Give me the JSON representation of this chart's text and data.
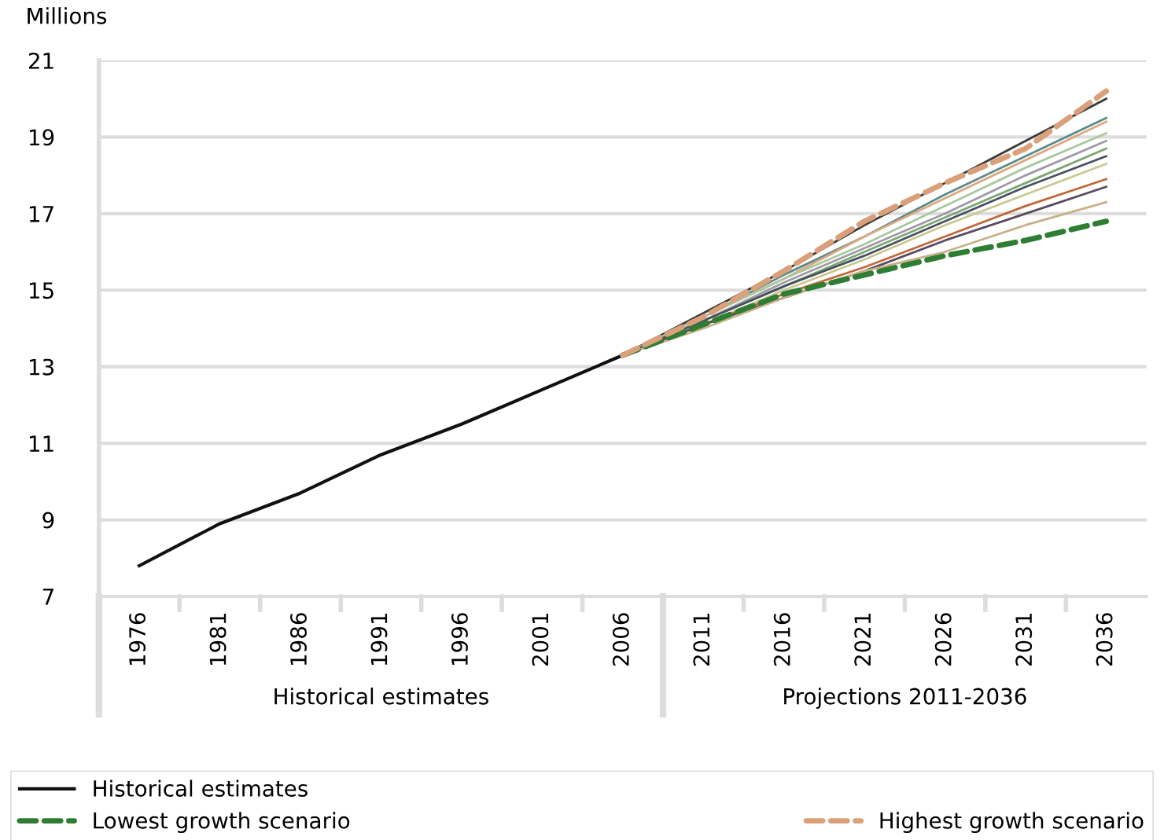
{
  "chart_data": {
    "type": "line",
    "ylabel": "Millions",
    "categories": [
      "1976",
      "1981",
      "1986",
      "1991",
      "1996",
      "2001",
      "2006",
      "2011",
      "2016",
      "2021",
      "2026",
      "2031",
      "2036"
    ],
    "series": [
      {
        "name": "Historical estimates",
        "color": "#111111",
        "line_style": "solid",
        "values": [
          7.8,
          8.9,
          9.7,
          10.7,
          11.5,
          12.4,
          13.3,
          null,
          null,
          null,
          null,
          null,
          null
        ]
      },
      {
        "color": "#3a3a3a",
        "line_style": "solid",
        "values": [
          null,
          null,
          null,
          null,
          null,
          null,
          13.3,
          14.4,
          15.5,
          16.7,
          17.8,
          18.9,
          20.0
        ]
      },
      {
        "color": "#5a8a8c",
        "line_style": "solid",
        "values": [
          null,
          null,
          null,
          null,
          null,
          null,
          13.3,
          14.3,
          15.4,
          16.4,
          17.5,
          18.5,
          19.5
        ]
      },
      {
        "color": "#dcaa80",
        "line_style": "solid",
        "values": [
          null,
          null,
          null,
          null,
          null,
          null,
          13.3,
          14.3,
          15.3,
          16.4,
          17.4,
          18.4,
          19.4
        ]
      },
      {
        "color": "#a8c8a0",
        "line_style": "solid",
        "values": [
          null,
          null,
          null,
          null,
          null,
          null,
          13.3,
          14.3,
          15.3,
          16.2,
          17.2,
          18.2,
          19.1
        ]
      },
      {
        "color": "#a09aa8",
        "line_style": "solid",
        "values": [
          null,
          null,
          null,
          null,
          null,
          null,
          13.3,
          14.2,
          15.2,
          16.1,
          17.0,
          18.0,
          18.9
        ]
      },
      {
        "color": "#7aa870",
        "line_style": "solid",
        "values": [
          null,
          null,
          null,
          null,
          null,
          null,
          13.3,
          14.2,
          15.1,
          16.0,
          16.9,
          17.8,
          18.7
        ]
      },
      {
        "color": "#4a5060",
        "line_style": "solid",
        "values": [
          null,
          null,
          null,
          null,
          null,
          null,
          13.3,
          14.2,
          15.1,
          15.9,
          16.8,
          17.7,
          18.5
        ]
      },
      {
        "color": "#c8c890",
        "line_style": "solid",
        "values": [
          null,
          null,
          null,
          null,
          null,
          null,
          13.3,
          14.1,
          15.0,
          15.8,
          16.7,
          17.5,
          18.3
        ]
      },
      {
        "color": "#c0683a",
        "line_style": "solid",
        "values": [
          null,
          null,
          null,
          null,
          null,
          null,
          13.3,
          14.1,
          14.9,
          15.6,
          16.4,
          17.2,
          17.9
        ]
      },
      {
        "color": "#5a4a60",
        "line_style": "solid",
        "values": [
          null,
          null,
          null,
          null,
          null,
          null,
          13.3,
          14.1,
          14.8,
          15.5,
          16.3,
          17.0,
          17.7
        ]
      },
      {
        "color": "#c8b088",
        "line_style": "solid",
        "values": [
          null,
          null,
          null,
          null,
          null,
          null,
          13.3,
          14.0,
          14.8,
          15.5,
          16.0,
          16.7,
          17.3
        ]
      },
      {
        "name": "Lowest growth scenario",
        "color": "#2e7d32",
        "line_style": "dashed",
        "values": [
          null,
          null,
          null,
          null,
          null,
          null,
          13.3,
          14.1,
          14.9,
          15.4,
          15.9,
          16.3,
          16.8
        ]
      },
      {
        "name": "Highest growth scenario",
        "color": "#d9a07a",
        "line_style": "dashed",
        "values": [
          null,
          null,
          null,
          null,
          null,
          null,
          13.3,
          14.3,
          15.5,
          16.8,
          17.8,
          18.7,
          20.2
        ]
      }
    ],
    "ylim": [
      7,
      21
    ],
    "yticks": [
      7,
      9,
      11,
      13,
      15,
      17,
      19,
      21
    ],
    "grid": "y",
    "marker": "none",
    "legend": "bottom",
    "annotations": [
      "Historical estimates",
      "Projections 2011-2036"
    ]
  }
}
